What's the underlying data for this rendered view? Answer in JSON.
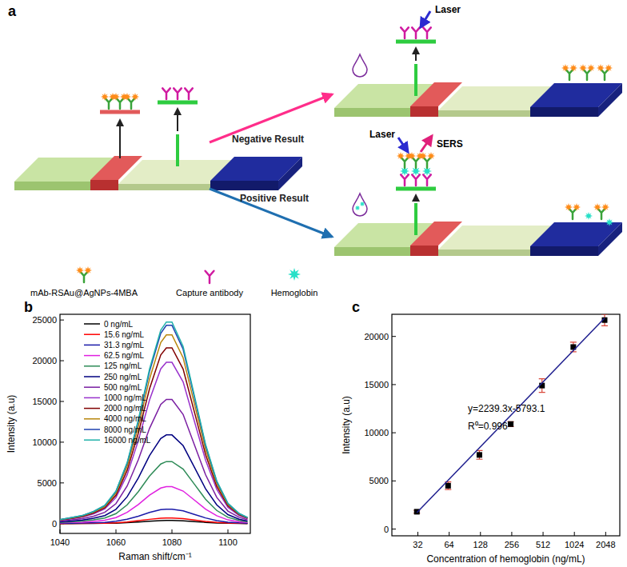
{
  "diagram": {
    "label": "a",
    "negative_result": "Negative Result",
    "positive_result": "Positive Result",
    "laser_labels": [
      "Laser",
      "Laser"
    ],
    "sers": "SERS",
    "key_items": [
      "mAb-RSAu@AgNPs-4MBA",
      "Capture antibody",
      "Hemoglobin"
    ]
  },
  "chart_data": [
    {
      "type": "line",
      "title": "b",
      "xlabel": "Raman shift/cm⁻¹",
      "ylabel": "Intensity (a.u)",
      "legend": "upper left",
      "x": [
        1040,
        1044,
        1048,
        1052,
        1056,
        1060,
        1064,
        1068,
        1072,
        1076,
        1078,
        1080,
        1084,
        1088,
        1092,
        1096,
        1100,
        1104,
        1107
      ],
      "xlim": [
        1040,
        1108
      ],
      "xticks": [
        1040,
        1060,
        1080,
        1100
      ],
      "ylim": [
        -1200,
        25700
      ],
      "yticks": [
        0,
        5000,
        10000,
        15000,
        20000,
        25000
      ],
      "series": [
        {
          "name": "0 ng/mL",
          "color": "#000000",
          "values": [
            10,
            10,
            20,
            20,
            40,
            60,
            120,
            200,
            300,
            380,
            400,
            400,
            350,
            250,
            160,
            80,
            40,
            20,
            10
          ]
        },
        {
          "name": "15.6 ng/mL",
          "color": "#ff0000",
          "values": [
            10,
            20,
            30,
            40,
            60,
            110,
            210,
            360,
            530,
            670,
            690,
            690,
            610,
            440,
            270,
            150,
            70,
            40,
            20
          ]
        },
        {
          "name": "31.3 ng/mL",
          "color": "#1a1aa8",
          "values": [
            40,
            50,
            70,
            110,
            160,
            290,
            540,
            920,
            1370,
            1710,
            1780,
            1780,
            1570,
            1130,
            700,
            380,
            180,
            90,
            50
          ]
        },
        {
          "name": "62.5 ng/mL",
          "color": "#e020e0",
          "values": [
            90,
            140,
            180,
            280,
            410,
            740,
            1380,
            2350,
            3500,
            4370,
            4550,
            4550,
            4000,
            2900,
            1790,
            970,
            460,
            230,
            140
          ]
        },
        {
          "name": "125 ng/mL",
          "color": "#2e8b57",
          "values": [
            150,
            230,
            310,
            460,
            690,
            1230,
            2310,
            3930,
            5850,
            7320,
            7620,
            7620,
            6700,
            4850,
            3000,
            1620,
            770,
            390,
            230
          ]
        },
        {
          "name": "250 ng/mL",
          "color": "#000080",
          "values": [
            220,
            330,
            440,
            660,
            990,
            1760,
            3300,
            5610,
            8360,
            10450,
            10890,
            10890,
            9570,
            6930,
            4290,
            2310,
            1100,
            550,
            330
          ]
        },
        {
          "name": "500 ng/mL",
          "color": "#7a1fa2",
          "values": [
            310,
            460,
            620,
            920,
            1390,
            2460,
            4620,
            7850,
            11700,
            14630,
            15250,
            15250,
            13400,
            9700,
            6010,
            3230,
            1540,
            770,
            460
          ]
        },
        {
          "name": "1000 ng/mL",
          "color": "#9932cc",
          "values": [
            400,
            600,
            800,
            1200,
            1800,
            3200,
            6000,
            10200,
            15200,
            19000,
            19800,
            19800,
            17400,
            12600,
            7800,
            4200,
            2000,
            1000,
            600
          ]
        },
        {
          "name": "2000 ng/mL",
          "color": "#800000",
          "values": [
            440,
            650,
            870,
            1310,
            1960,
            3490,
            6540,
            11120,
            16570,
            20710,
            21580,
            21580,
            18970,
            13730,
            8500,
            4580,
            2180,
            1090,
            650
          ]
        },
        {
          "name": "4000 ng/mL",
          "color": "#b8860b",
          "values": [
            470,
            700,
            940,
            1400,
            2110,
            3740,
            7020,
            11930,
            17780,
            22230,
            23170,
            23170,
            20360,
            14740,
            9130,
            4910,
            2340,
            1170,
            700
          ]
        },
        {
          "name": "8000 ng/mL",
          "color": "#1e40af",
          "values": [
            490,
            740,
            980,
            1480,
            2210,
            3940,
            7380,
            12550,
            18700,
            23370,
            24350,
            24350,
            21400,
            15500,
            9590,
            5170,
            2460,
            1230,
            740
          ]
        },
        {
          "name": "16000 ng/mL",
          "color": "#20b2aa",
          "values": [
            500,
            750,
            1000,
            1500,
            2250,
            4000,
            7500,
            12750,
            19000,
            23750,
            24750,
            24750,
            21750,
            15750,
            9750,
            5250,
            2500,
            1250,
            750
          ]
        }
      ]
    },
    {
      "type": "scatter",
      "title": "c",
      "xlabel": "Concentration of hemoglobin (ng/mL)",
      "ylabel": "Intensity (a.u)",
      "log": "x",
      "xlim": [
        18,
        2800
      ],
      "xticks": [
        32,
        64,
        128,
        256,
        512,
        1024,
        2048
      ],
      "ylim": [
        -700,
        22300
      ],
      "yticks": [
        0,
        5000,
        10000,
        15000,
        20000
      ],
      "annotations": [
        "y=2239.3x-5793.1",
        "R⁰=0.996"
      ],
      "series": [
        {
          "type": "scatter",
          "marker": "square",
          "color": "#000000",
          "x": [
            31.3,
            62.5,
            125,
            250,
            500,
            1000,
            2000
          ],
          "values": [
            1800,
            4500,
            7700,
            10900,
            14900,
            18900,
            21700
          ],
          "errors": [
            150,
            400,
            450,
            250,
            700,
            500,
            600
          ]
        },
        {
          "type": "line",
          "color": "#1f1f8f",
          "x": [
            31.3,
            2000
          ],
          "values": [
            1700,
            21900
          ]
        }
      ]
    }
  ]
}
